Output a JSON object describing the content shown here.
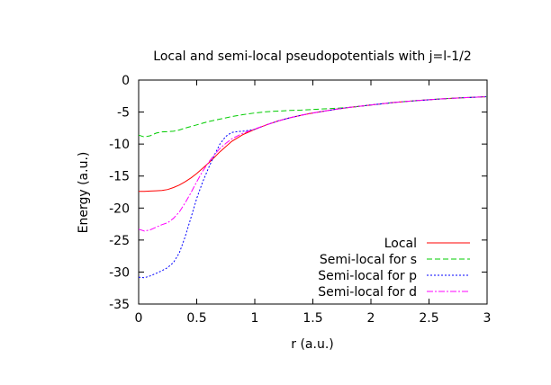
{
  "chart_data": {
    "type": "line",
    "title": "Local and semi-local pseudopotentials with j=l-1/2",
    "xlabel": "r (a.u.)",
    "ylabel": "Energy (a.u.)",
    "xlim": [
      0,
      3
    ],
    "ylim": [
      -35,
      0
    ],
    "x_ticks": [
      0,
      0.5,
      1,
      1.5,
      2,
      2.5,
      3
    ],
    "x_tick_labels": [
      "0",
      "0.5",
      "1",
      "1.5",
      "2",
      "2.5",
      "3"
    ],
    "y_ticks": [
      0,
      -5,
      -10,
      -15,
      -20,
      -25,
      -30,
      -35
    ],
    "y_tick_labels": [
      "0",
      "-5",
      "-10",
      "-15",
      "-20",
      "-25",
      "-30",
      "-35"
    ],
    "grid": false,
    "legend_position": "bottom-right",
    "series": [
      {
        "name": "Local",
        "color": "#ff0000",
        "dash": "solid",
        "points": [
          [
            0,
            -17.4
          ],
          [
            0.05,
            -17.4
          ],
          [
            0.1,
            -17.35
          ],
          [
            0.15,
            -17.3
          ],
          [
            0.2,
            -17.25
          ],
          [
            0.25,
            -17.1
          ],
          [
            0.3,
            -16.8
          ],
          [
            0.35,
            -16.4
          ],
          [
            0.4,
            -15.9
          ],
          [
            0.45,
            -15.3
          ],
          [
            0.5,
            -14.6
          ],
          [
            0.55,
            -13.8
          ],
          [
            0.6,
            -13.0
          ],
          [
            0.65,
            -12.1
          ],
          [
            0.7,
            -11.2
          ],
          [
            0.75,
            -10.4
          ],
          [
            0.8,
            -9.6
          ],
          [
            0.9,
            -8.5
          ],
          [
            1.0,
            -7.7
          ],
          [
            1.1,
            -7.0
          ],
          [
            1.2,
            -6.4
          ],
          [
            1.3,
            -5.9
          ],
          [
            1.4,
            -5.5
          ],
          [
            1.5,
            -5.15
          ],
          [
            1.6,
            -4.85
          ],
          [
            1.7,
            -4.55
          ],
          [
            1.8,
            -4.3
          ],
          [
            2.0,
            -3.9
          ],
          [
            2.2,
            -3.5
          ],
          [
            2.4,
            -3.2
          ],
          [
            2.6,
            -2.95
          ],
          [
            2.8,
            -2.75
          ],
          [
            3.0,
            -2.6
          ]
        ]
      },
      {
        "name": "Semi-local for s",
        "color": "#00cc00",
        "dash": "6,3",
        "points": [
          [
            0,
            -8.6
          ],
          [
            0.05,
            -8.9
          ],
          [
            0.1,
            -8.7
          ],
          [
            0.15,
            -8.3
          ],
          [
            0.2,
            -8.1
          ],
          [
            0.25,
            -8.05
          ],
          [
            0.3,
            -8.0
          ],
          [
            0.35,
            -7.8
          ],
          [
            0.4,
            -7.5
          ],
          [
            0.5,
            -7.0
          ],
          [
            0.6,
            -6.5
          ],
          [
            0.7,
            -6.1
          ],
          [
            0.8,
            -5.7
          ],
          [
            0.9,
            -5.4
          ],
          [
            1.0,
            -5.15
          ],
          [
            1.1,
            -4.95
          ],
          [
            1.2,
            -4.85
          ],
          [
            1.3,
            -4.75
          ],
          [
            1.4,
            -4.7
          ],
          [
            1.5,
            -4.6
          ],
          [
            1.6,
            -4.5
          ],
          [
            1.7,
            -4.4
          ],
          [
            1.8,
            -4.3
          ],
          [
            2.0,
            -3.9
          ],
          [
            2.2,
            -3.5
          ],
          [
            2.4,
            -3.2
          ],
          [
            2.6,
            -2.95
          ],
          [
            2.8,
            -2.75
          ],
          [
            3.0,
            -2.6
          ]
        ]
      },
      {
        "name": "Semi-local for p",
        "color": "#0000ff",
        "dash": "2,2",
        "points": [
          [
            0,
            -30.8
          ],
          [
            0.05,
            -30.9
          ],
          [
            0.1,
            -30.6
          ],
          [
            0.15,
            -30.2
          ],
          [
            0.2,
            -29.8
          ],
          [
            0.25,
            -29.3
          ],
          [
            0.3,
            -28.5
          ],
          [
            0.35,
            -27.0
          ],
          [
            0.4,
            -24.5
          ],
          [
            0.45,
            -21.5
          ],
          [
            0.5,
            -18.5
          ],
          [
            0.55,
            -16.0
          ],
          [
            0.6,
            -13.8
          ],
          [
            0.65,
            -11.8
          ],
          [
            0.7,
            -10.0
          ],
          [
            0.75,
            -8.8
          ],
          [
            0.8,
            -8.2
          ],
          [
            0.85,
            -8.05
          ],
          [
            0.9,
            -8.0
          ],
          [
            1.0,
            -7.7
          ],
          [
            1.1,
            -7.0
          ],
          [
            1.2,
            -6.4
          ],
          [
            1.3,
            -5.9
          ],
          [
            1.4,
            -5.5
          ],
          [
            1.5,
            -5.15
          ],
          [
            1.6,
            -4.85
          ],
          [
            1.7,
            -4.55
          ],
          [
            1.8,
            -4.3
          ],
          [
            2.0,
            -3.9
          ],
          [
            2.2,
            -3.5
          ],
          [
            2.4,
            -3.2
          ],
          [
            2.6,
            -2.95
          ],
          [
            2.8,
            -2.75
          ],
          [
            3.0,
            -2.6
          ]
        ]
      },
      {
        "name": "Semi-local for d",
        "color": "#ff00ff",
        "dash": "7,2,2,2",
        "points": [
          [
            0,
            -23.3
          ],
          [
            0.05,
            -23.6
          ],
          [
            0.1,
            -23.4
          ],
          [
            0.15,
            -23.0
          ],
          [
            0.2,
            -22.6
          ],
          [
            0.25,
            -22.3
          ],
          [
            0.3,
            -21.6
          ],
          [
            0.35,
            -20.6
          ],
          [
            0.4,
            -19.2
          ],
          [
            0.45,
            -17.6
          ],
          [
            0.5,
            -15.9
          ],
          [
            0.55,
            -14.3
          ],
          [
            0.6,
            -12.9
          ],
          [
            0.65,
            -11.7
          ],
          [
            0.7,
            -10.7
          ],
          [
            0.75,
            -9.9
          ],
          [
            0.8,
            -9.2
          ],
          [
            0.9,
            -8.3
          ],
          [
            1.0,
            -7.65
          ],
          [
            1.1,
            -7.0
          ],
          [
            1.2,
            -6.4
          ],
          [
            1.3,
            -5.9
          ],
          [
            1.4,
            -5.5
          ],
          [
            1.5,
            -5.15
          ],
          [
            1.6,
            -4.85
          ],
          [
            1.7,
            -4.55
          ],
          [
            1.8,
            -4.3
          ],
          [
            2.0,
            -3.9
          ],
          [
            2.2,
            -3.5
          ],
          [
            2.4,
            -3.2
          ],
          [
            2.6,
            -2.95
          ],
          [
            2.8,
            -2.75
          ],
          [
            3.0,
            -2.6
          ]
        ]
      }
    ]
  }
}
